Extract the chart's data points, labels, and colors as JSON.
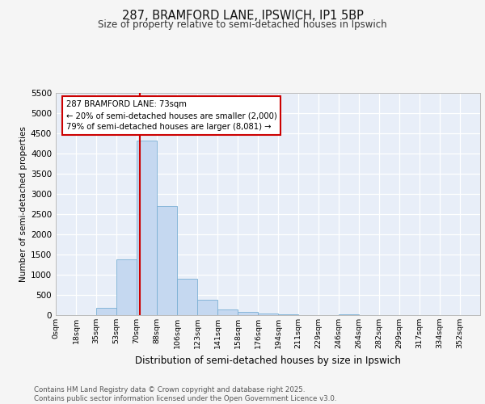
{
  "title_line1": "287, BRAMFORD LANE, IPSWICH, IP1 5BP",
  "title_line2": "Size of property relative to semi-detached houses in Ipswich",
  "xlabel": "Distribution of semi-detached houses by size in Ipswich",
  "ylabel": "Number of semi-detached properties",
  "categories": [
    "0sqm",
    "18sqm",
    "35sqm",
    "53sqm",
    "70sqm",
    "88sqm",
    "106sqm",
    "123sqm",
    "141sqm",
    "158sqm",
    "176sqm",
    "194sqm",
    "211sqm",
    "229sqm",
    "246sqm",
    "264sqm",
    "282sqm",
    "299sqm",
    "317sqm",
    "334sqm",
    "352sqm"
  ],
  "values": [
    0,
    0,
    175,
    1375,
    4325,
    2700,
    900,
    375,
    150,
    80,
    50,
    25,
    0,
    0,
    30,
    0,
    0,
    0,
    0,
    0,
    0
  ],
  "bar_color": "#c5d8f0",
  "bar_edge_color": "#7aafd4",
  "property_line_color": "#cc0000",
  "annotation_text": "287 BRAMFORD LANE: 73sqm\n← 20% of semi-detached houses are smaller (2,000)\n79% of semi-detached houses are larger (8,081) →",
  "annotation_box_color": "#cc0000",
  "ylim": [
    0,
    5500
  ],
  "yticks": [
    0,
    500,
    1000,
    1500,
    2000,
    2500,
    3000,
    3500,
    4000,
    4500,
    5000,
    5500
  ],
  "background_color": "#e8eef8",
  "grid_color": "#ffffff",
  "footer_text": "Contains HM Land Registry data © Crown copyright and database right 2025.\nContains public sector information licensed under the Open Government Licence v3.0.",
  "fig_bg": "#f5f5f5"
}
